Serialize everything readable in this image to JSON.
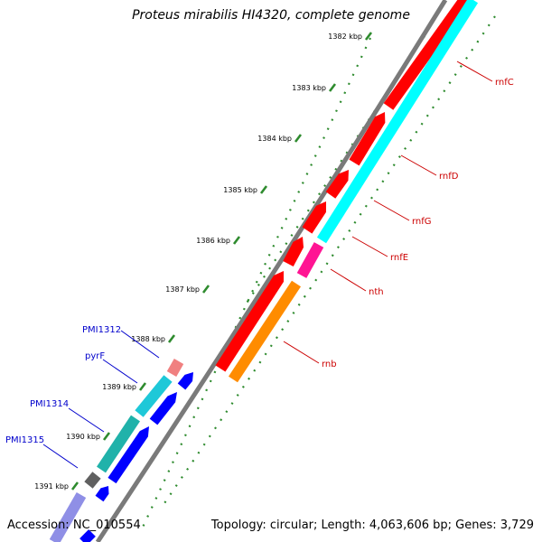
{
  "title": "Proteus mirabilis HI4320, complete genome",
  "accession": "Accession: NC_010554",
  "topology": "Topology: circular; Length: 4,063,606 bp; Genes: 3,729",
  "ticks": [
    {
      "label": "1382 kbp"
    },
    {
      "label": "1383 kbp"
    },
    {
      "label": "1384 kbp"
    },
    {
      "label": "1385 kbp"
    },
    {
      "label": "1386 kbp"
    },
    {
      "label": "1387 kbp"
    },
    {
      "label": "1388 kbp"
    },
    {
      "label": "1389 kbp"
    },
    {
      "label": "1390 kbp"
    },
    {
      "label": "1391 kbp"
    }
  ],
  "genes_right": [
    {
      "name": "rnfC",
      "color": "#cc0000"
    },
    {
      "name": "rnfD",
      "color": "#cc0000"
    },
    {
      "name": "rnfG",
      "color": "#cc0000"
    },
    {
      "name": "rnfE",
      "color": "#cc0000"
    },
    {
      "name": "nth",
      "color": "#cc0000"
    },
    {
      "name": "rnb",
      "color": "#cc0000"
    }
  ],
  "genes_left": [
    {
      "name": "PMI1312",
      "color": "#0000cc"
    },
    {
      "name": "pyrF",
      "color": "#0000cc"
    },
    {
      "name": "PMI1314",
      "color": "#0000cc"
    },
    {
      "name": "PMI1315",
      "color": "#0000cc"
    }
  ],
  "colors": {
    "cds_forward": "#ff0000",
    "gene_forward": "#00ffff",
    "misc": "#ff1493",
    "rnb_gene": "#ff8c00",
    "left_cds": "#0000ff",
    "left_gene": "#20b2aa",
    "backbone": "#808080",
    "tick": "#2e8b2e"
  }
}
